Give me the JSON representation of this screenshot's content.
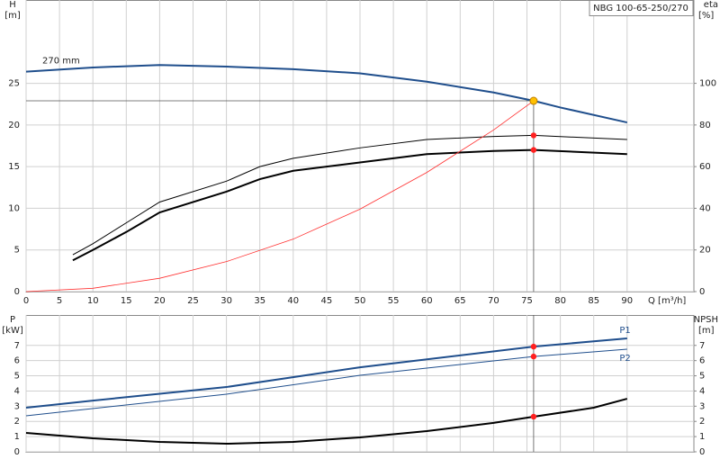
{
  "chart_data": [
    {
      "type": "line",
      "title": "NBG 100-65-250/270",
      "xlabel": "Q [m³/h]",
      "ylabel": "H",
      "yunit": "[m]",
      "y2label": "eta",
      "y2unit": "[%]",
      "xlim": [
        0,
        100
      ],
      "xticks": [
        0,
        5,
        10,
        15,
        20,
        25,
        30,
        35,
        40,
        45,
        50,
        55,
        60,
        65,
        70,
        75,
        80,
        85,
        90
      ],
      "ylim": [
        0,
        35
      ],
      "yticks": [
        0,
        5,
        10,
        15,
        20,
        25
      ],
      "y2lim": [
        0,
        140
      ],
      "y2ticks": [
        0,
        20,
        40,
        60,
        80,
        100
      ],
      "grid": true,
      "series": [
        {
          "name": "270 mm",
          "color": "#1f4e8c",
          "width": 2,
          "axis": "y",
          "x": [
            0,
            10,
            20,
            30,
            40,
            50,
            60,
            70,
            76,
            80,
            90
          ],
          "values": [
            26.4,
            26.9,
            27.2,
            27.0,
            26.7,
            26.2,
            25.2,
            23.9,
            22.9,
            22.1,
            20.3
          ]
        },
        {
          "color": "#000000",
          "width": 1,
          "axis": "y2",
          "x": [
            7,
            10,
            15,
            20,
            30,
            35,
            40,
            50,
            60,
            70,
            76,
            90
          ],
          "values": [
            17.7,
            23,
            33,
            43,
            53,
            60,
            64,
            69,
            73,
            74.5,
            75,
            73
          ]
        },
        {
          "color": "#000000",
          "width": 2,
          "axis": "y2",
          "x": [
            7,
            10,
            15,
            20,
            30,
            35,
            40,
            50,
            60,
            70,
            76,
            90
          ],
          "values": [
            15,
            20,
            28.6,
            38,
            48,
            54,
            58,
            62,
            66,
            67.5,
            68,
            66
          ]
        },
        {
          "color": "#ff3030",
          "width": 0.8,
          "axis": "y",
          "x": [
            0,
            10,
            20,
            30,
            40,
            50,
            60,
            70,
            76
          ],
          "values": [
            0,
            0.4,
            1.6,
            3.6,
            6.3,
            9.9,
            14.3,
            19.4,
            22.9
          ]
        }
      ],
      "duty": {
        "q": 76,
        "h": 22.9,
        "eta": [
          75,
          68
        ]
      }
    },
    {
      "type": "line",
      "ylabel": "P",
      "yunit": "[kW]",
      "y2label": "NPSH",
      "y2unit": "[m]",
      "xlim": [
        0,
        100
      ],
      "ylim": [
        0,
        9
      ],
      "yticks": [
        0,
        1,
        2,
        3,
        4,
        5,
        6,
        7
      ],
      "y2lim": [
        0,
        9
      ],
      "y2ticks": [
        0,
        1,
        2,
        3,
        4,
        5,
        6,
        7
      ],
      "grid": true,
      "series": [
        {
          "name": "P1",
          "color": "#1f4e8c",
          "width": 2,
          "axis": "y",
          "x": [
            0,
            10,
            30,
            50,
            76,
            90
          ],
          "values": [
            2.9,
            3.37,
            4.26,
            5.56,
            6.92,
            7.46
          ]
        },
        {
          "name": "P2",
          "color": "#1f4e8c",
          "width": 1,
          "axis": "y",
          "x": [
            0,
            30,
            50,
            76,
            90
          ],
          "values": [
            2.37,
            3.79,
            5.03,
            6.27,
            6.75
          ]
        },
        {
          "color": "#000000",
          "width": 2,
          "axis": "y2",
          "x": [
            0,
            10,
            20,
            30,
            40,
            50,
            60,
            70,
            76,
            85,
            90
          ],
          "values": [
            1.24,
            0.89,
            0.65,
            0.53,
            0.65,
            0.95,
            1.36,
            1.9,
            2.31,
            2.9,
            3.49
          ]
        }
      ],
      "duty": {
        "p": [
          6.92,
          6.27
        ],
        "npsh": 2.31
      }
    }
  ]
}
